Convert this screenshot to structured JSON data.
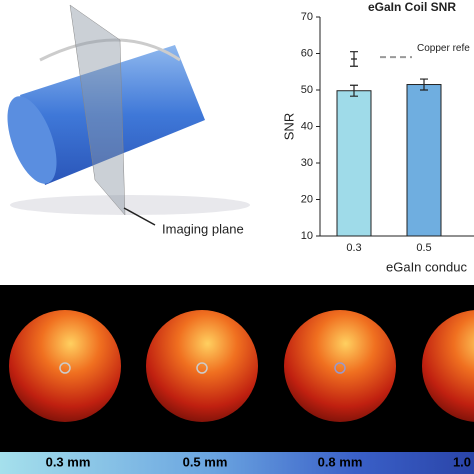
{
  "illustration": {
    "label": "Imaging plane"
  },
  "chart_data": {
    "type": "bar",
    "title": "eGaIn Coil SNR",
    "ylabel": "SNR",
    "xlabel": "eGaIn conduc",
    "categories": [
      "0.3",
      "0.5"
    ],
    "values": [
      49.8,
      51.5
    ],
    "errors": [
      1.5,
      1.5
    ],
    "colors": [
      "#9fdbe9",
      "#6faee0"
    ],
    "reference": {
      "label": "Copper refe",
      "value": 59,
      "marker_value": 58.5,
      "marker_error": 2
    },
    "ylim": [
      10,
      70
    ],
    "yticks": [
      10,
      20,
      30,
      40,
      50,
      60,
      70
    ]
  },
  "panels": {
    "labels": [
      "0.3 mm",
      "0.5 mm",
      "0.8 mm",
      "1.0"
    ]
  }
}
